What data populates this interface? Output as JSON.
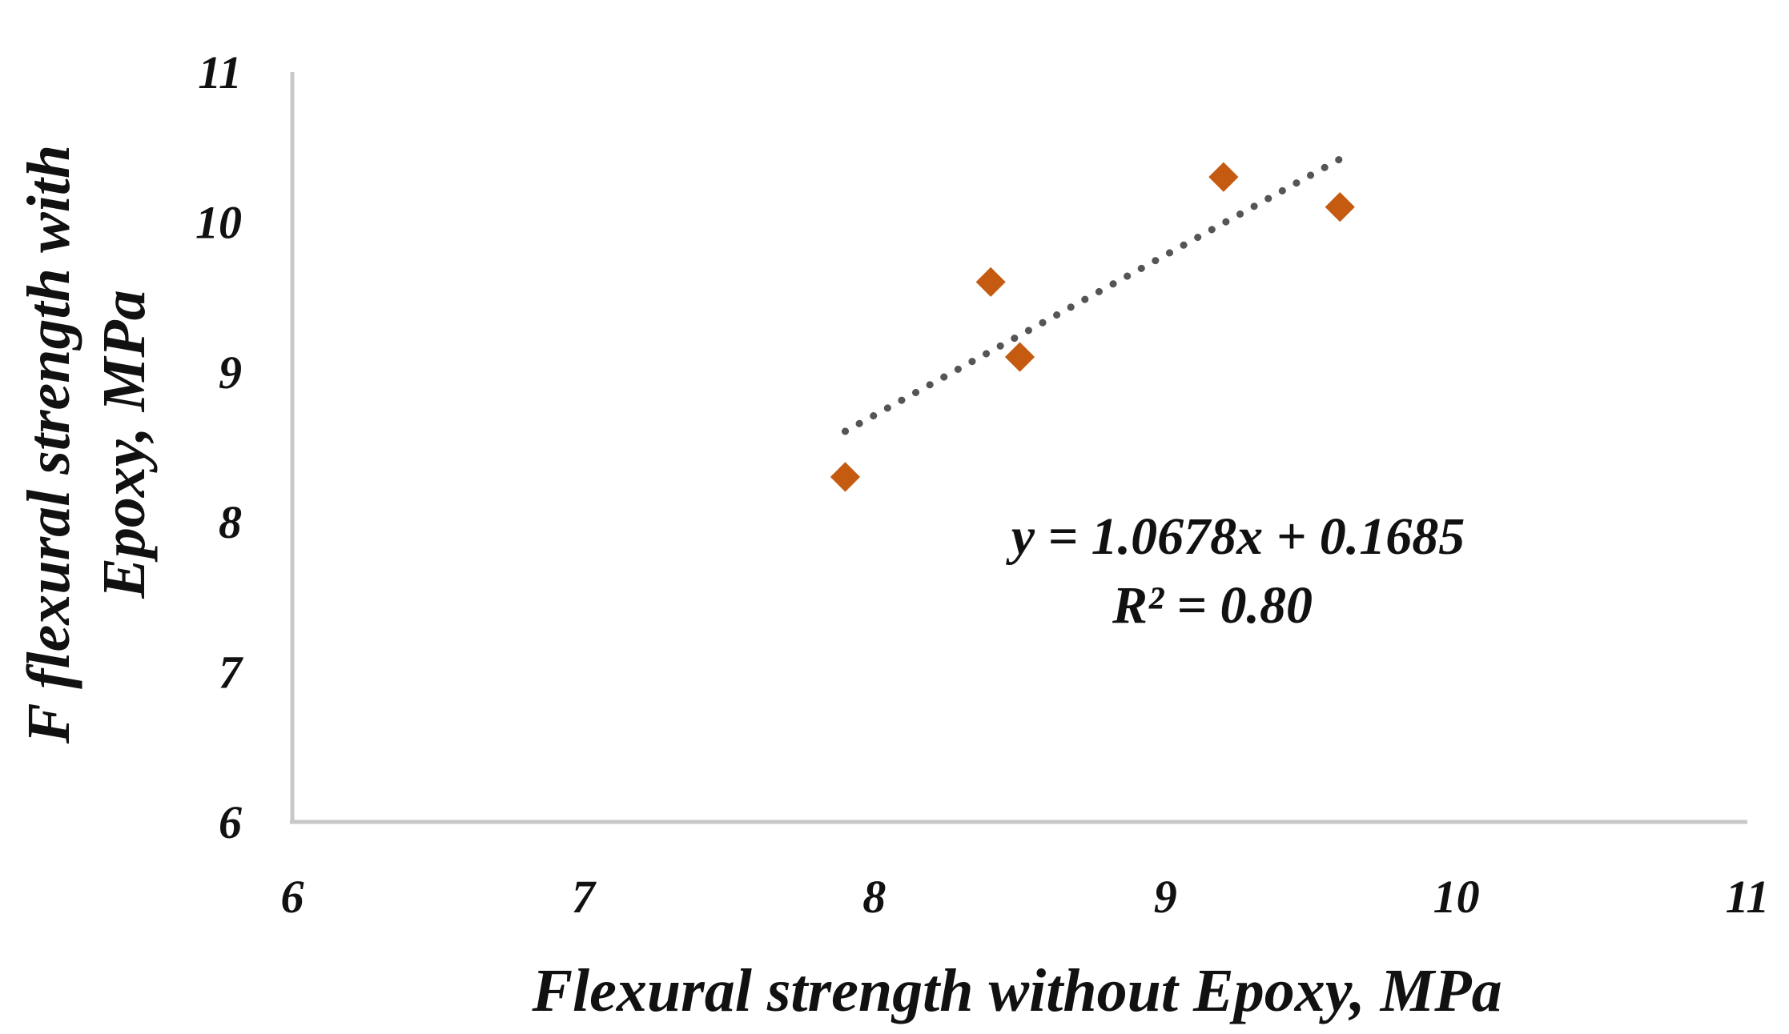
{
  "chart_data": {
    "type": "scatter",
    "xlabel": "Flexural strength without Epoxy, MPa",
    "ylabel_lines": [
      "F flexural strength with",
      "Epoxy, MPa"
    ],
    "xlim": [
      6,
      11
    ],
    "ylim": [
      6,
      11
    ],
    "x_ticks": [
      "6",
      "7",
      "8",
      "9",
      "10",
      "11"
    ],
    "y_ticks": [
      "6",
      "7",
      "8",
      "9",
      "10",
      "11"
    ],
    "grid": false,
    "series": [
      {
        "marker": "diamond",
        "color": "#c55a11",
        "points": [
          {
            "x": 7.9,
            "y": 8.3
          },
          {
            "x": 8.4,
            "y": 9.6
          },
          {
            "x": 8.5,
            "y": 9.1
          },
          {
            "x": 9.2,
            "y": 10.3
          },
          {
            "x": 9.6,
            "y": 10.1
          }
        ]
      }
    ],
    "trendline": {
      "type": "linear",
      "style": "dotted",
      "color": "#555555",
      "slope": 1.0678,
      "intercept": 0.1685,
      "x_range": [
        7.9,
        9.6
      ],
      "equation": "y = 1.0678x + 0.1685",
      "r_squared": "R² = 0.80"
    },
    "axis_color": "#c8c8c8"
  }
}
